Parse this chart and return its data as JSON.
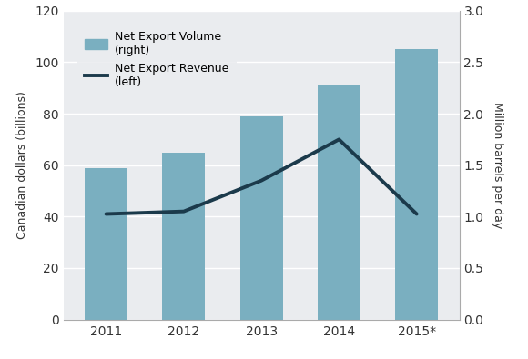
{
  "years": [
    "2011",
    "2012",
    "2013",
    "2014",
    "2015*"
  ],
  "bar_values": [
    59,
    65,
    79,
    91,
    105
  ],
  "line_values": [
    41,
    42,
    54,
    70,
    41
  ],
  "bar_color": "#7aafc0",
  "line_color": "#1b3a4b",
  "left_ylim": [
    0,
    120
  ],
  "left_yticks": [
    0,
    20,
    40,
    60,
    80,
    100,
    120
  ],
  "right_ylim": [
    0,
    3.0
  ],
  "right_yticks": [
    0.0,
    0.5,
    1.0,
    1.5,
    2.0,
    2.5,
    3.0
  ],
  "left_ylabel": "Canadian dollars (billions)",
  "right_ylabel": "Million barrels per day",
  "legend_bar_label": "Net Export Volume\n(right)",
  "legend_line_label": "Net Export Revenue\n(left)",
  "plot_bg_color": "#eaecef",
  "outer_bg_color": "#ffffff",
  "grid_color": "#ffffff",
  "bar_width": 0.55,
  "line_width": 2.8,
  "tick_label_fontsize": 10,
  "axis_label_fontsize": 9
}
